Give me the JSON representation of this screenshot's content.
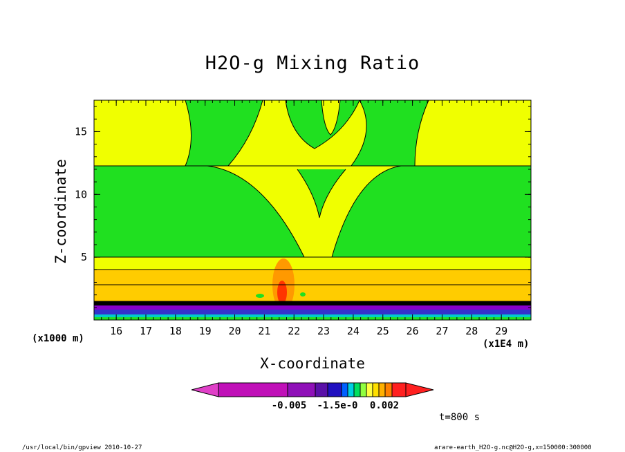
{
  "chart_data": {
    "type": "contour",
    "title": "H2O-g Mixing Ratio",
    "xlabel": "X-coordinate",
    "ylabel": "Z-coordinate",
    "x_unit_left": "(x1000 m)",
    "x_unit_right": "(x1E4 m)",
    "x_ticks": [
      "16",
      "17",
      "18",
      "19",
      "20",
      "21",
      "22",
      "23",
      "24",
      "25",
      "26",
      "27",
      "28",
      "29"
    ],
    "y_ticks": [
      "5",
      "10",
      "15"
    ],
    "xlim": [
      15.25,
      30.0
    ],
    "ylim": [
      0,
      17.5
    ],
    "colorbar_labels": [
      "-0.005",
      "-1.5e-0",
      "0.002"
    ],
    "colorbar_colors": [
      "#e040c8",
      "#c010b8",
      "#8f10b8",
      "#5a10a8",
      "#2010c0",
      "#0060ff",
      "#00d0e0",
      "#00e060",
      "#90ff40",
      "#ffff40",
      "#ffe000",
      "#ffb000",
      "#ff8000",
      "#ff2020"
    ],
    "field_colors": {
      "background": "#f0ff00",
      "green": "#20e020",
      "orange_light": "#ffcc00",
      "orange": "#ff9900",
      "red": "#ff3300",
      "dark": "#000000",
      "purple": "#8800cc",
      "blue": "#3333cc",
      "cyan": "#00cccc"
    },
    "time_label": "t=800 s"
  },
  "footer": {
    "left": "/usr/local/bin/gpview   2010-10-27",
    "right": "arare-earth_H2O-g.nc@H2O-g,x=150000:300000"
  }
}
